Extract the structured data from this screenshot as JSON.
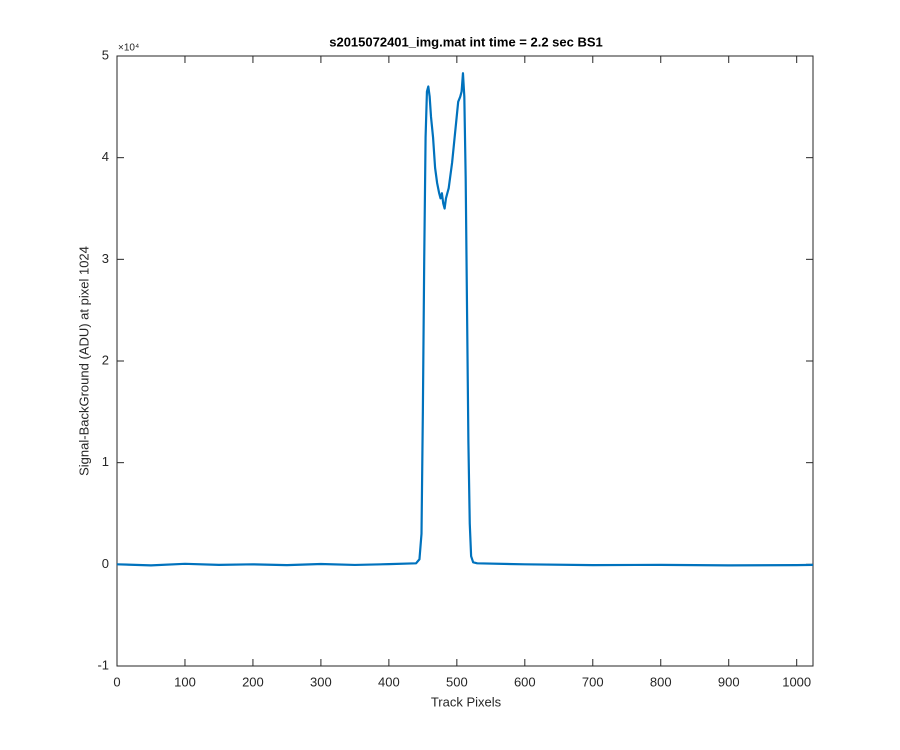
{
  "chart_data": {
    "type": "line",
    "title": "s2015072401_img.mat int time = 2.2 sec   BS1",
    "x_label": "Track Pixels",
    "y_label": "Signal-BackGround (ADU) at pixel 1024",
    "y_exponent_label": "×10⁴",
    "x": [
      0,
      50,
      100,
      150,
      200,
      250,
      300,
      350,
      400,
      440,
      445,
      448,
      450,
      452,
      454,
      456,
      458,
      460,
      462,
      465,
      468,
      471,
      474,
      476,
      478,
      480,
      482,
      484,
      486,
      488,
      490,
      493,
      496,
      499,
      502,
      505,
      507,
      509,
      511,
      513,
      515,
      517,
      519,
      521,
      524,
      530,
      600,
      700,
      800,
      900,
      1000,
      1024
    ],
    "series": [
      {
        "color": "#0072bd",
        "values": [
          0,
          -100,
          50,
          -50,
          0,
          -80,
          30,
          -60,
          20,
          100,
          500,
          3000,
          15000,
          30000,
          42000,
          46500,
          47000,
          46000,
          44000,
          42000,
          39000,
          37500,
          36500,
          36000,
          36500,
          35500,
          35000,
          36000,
          36500,
          37000,
          38000,
          39500,
          41500,
          43500,
          45500,
          46000,
          46500,
          48300,
          46000,
          38000,
          25000,
          12000,
          4000,
          800,
          200,
          100,
          0,
          -80,
          -50,
          -100,
          -80,
          -50
        ]
      }
    ],
    "xlim": [
      0,
      1024
    ],
    "xticks": [
      0,
      100,
      200,
      300,
      400,
      500,
      600,
      700,
      800,
      900,
      1000
    ],
    "ylim": [
      -10000,
      50000
    ],
    "yticks": [
      {
        "value": -10000,
        "label": "-1"
      },
      {
        "value": 0,
        "label": "0"
      },
      {
        "value": 10000,
        "label": "1"
      },
      {
        "value": 20000,
        "label": "2"
      },
      {
        "value": 30000,
        "label": "3"
      },
      {
        "value": 40000,
        "label": "4"
      },
      {
        "value": 50000,
        "label": "5"
      }
    ],
    "grid": false
  }
}
